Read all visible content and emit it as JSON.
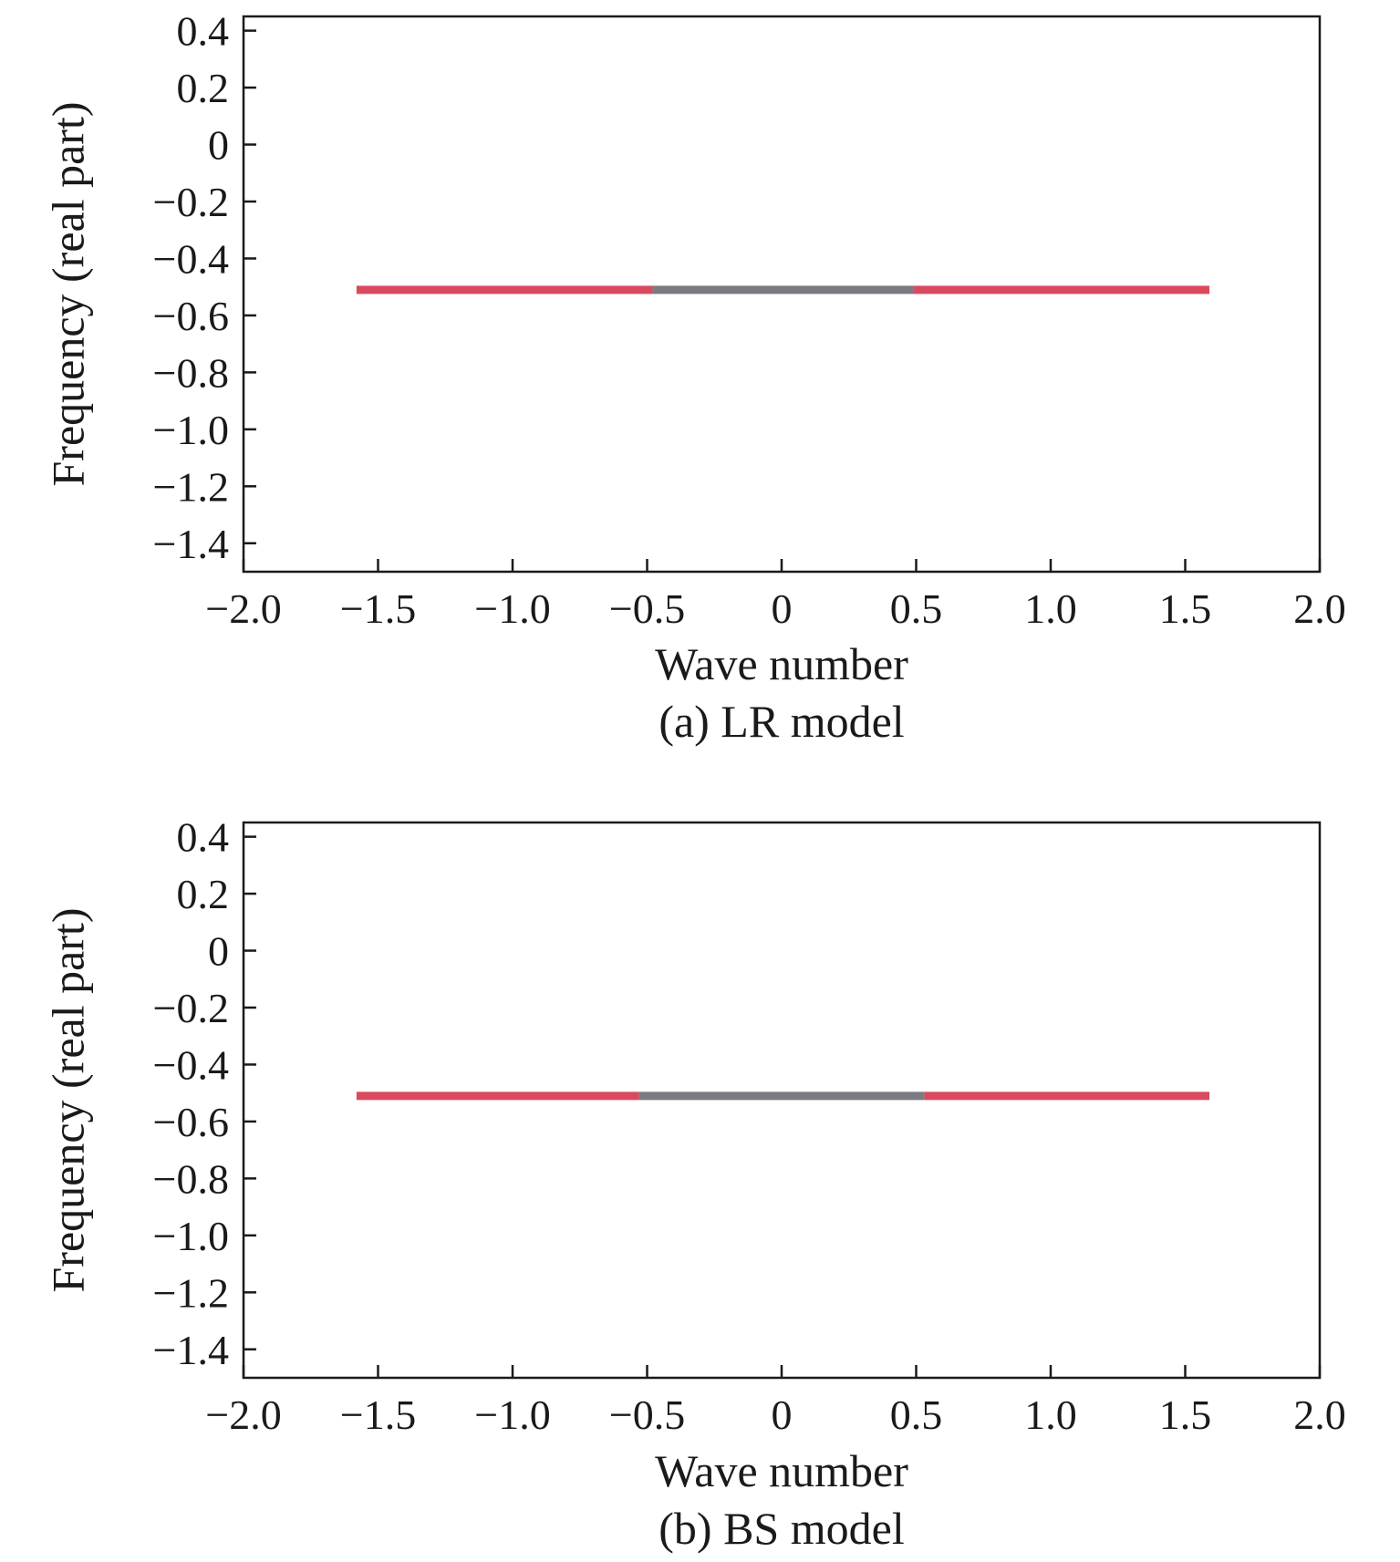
{
  "chart_data": [
    {
      "type": "line",
      "caption": "(a) LR model",
      "xlabel": "Wave number",
      "ylabel": "Frequency (real part)",
      "xlim": [
        -2.0,
        2.0
      ],
      "ylim": [
        -1.5,
        0.45
      ],
      "xticks": [
        -2.0,
        -1.5,
        -1.0,
        -0.5,
        0,
        0.5,
        1.0,
        1.5,
        2.0
      ],
      "xtick_labels": [
        "−2.0",
        "−1.5",
        "−1.0",
        "−0.5",
        "0",
        "0.5",
        "1.0",
        "1.5",
        "2.0"
      ],
      "yticks": [
        0.4,
        0.2,
        0,
        -0.2,
        -0.4,
        -0.6,
        -0.8,
        -1.0,
        -1.2,
        -1.4
      ],
      "ytick_labels": [
        "0.4",
        "0.2",
        "0",
        "−0.2",
        "−0.4",
        "−0.6",
        "−0.8",
        "−1.0",
        "−1.2",
        "−1.4"
      ],
      "grid": false,
      "series": [
        {
          "color": "#d94a5f",
          "segments": [
            [
              -1.58,
              -0.48
            ],
            [
              0.49,
              1.59
            ]
          ],
          "y": -0.51
        },
        {
          "color": "#7a7a82",
          "segments": [
            [
              -0.48,
              0.49
            ]
          ],
          "y": -0.51
        }
      ]
    },
    {
      "type": "line",
      "caption": "(b) BS model",
      "xlabel": "Wave number",
      "ylabel": "Frequency (real part)",
      "xlim": [
        -2.0,
        2.0
      ],
      "ylim": [
        -1.5,
        0.45
      ],
      "xticks": [
        -2.0,
        -1.5,
        -1.0,
        -0.5,
        0,
        0.5,
        1.0,
        1.5,
        2.0
      ],
      "xtick_labels": [
        "−2.0",
        "−1.5",
        "−1.0",
        "−0.5",
        "0",
        "0.5",
        "1.0",
        "1.5",
        "2.0"
      ],
      "yticks": [
        0.4,
        0.2,
        0,
        -0.2,
        -0.4,
        -0.6,
        -0.8,
        -1.0,
        -1.2,
        -1.4
      ],
      "ytick_labels": [
        "0.4",
        "0.2",
        "0",
        "−0.2",
        "−0.4",
        "−0.6",
        "−0.8",
        "−1.0",
        "−1.2",
        "−1.4"
      ],
      "grid": false,
      "series": [
        {
          "color": "#d94a5f",
          "segments": [
            [
              -1.58,
              -0.53
            ],
            [
              0.53,
              1.59
            ]
          ],
          "y": -0.51
        },
        {
          "color": "#7a7a82",
          "segments": [
            [
              -0.53,
              0.53
            ]
          ],
          "y": -0.51
        }
      ]
    }
  ]
}
